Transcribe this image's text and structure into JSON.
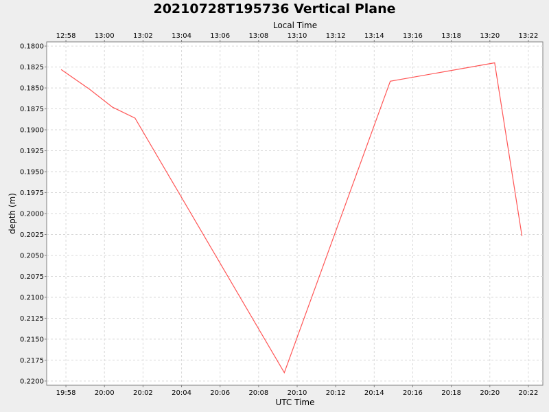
{
  "chart_data": {
    "type": "line",
    "title": "20210728T195736 Vertical Plane",
    "xlabel": "UTC Time",
    "x2label": "Local Time",
    "ylabel": "depth (m)",
    "y_inverted": true,
    "ylim": [
      0.1795,
      0.2205
    ],
    "xlim": [
      "19:57:00",
      "20:22:45"
    ],
    "grid": true,
    "x_ticks": [
      "19:58",
      "20:00",
      "20:02",
      "20:04",
      "20:06",
      "20:08",
      "20:10",
      "20:12",
      "20:14",
      "20:16",
      "20:18",
      "20:20",
      "20:22"
    ],
    "x2_ticks": [
      "12:58",
      "13:00",
      "13:02",
      "13:04",
      "13:06",
      "13:08",
      "13:10",
      "13:12",
      "13:14",
      "13:16",
      "13:18",
      "13:20",
      "13:22"
    ],
    "y_ticks": [
      "0.1800",
      "0.1825",
      "0.1850",
      "0.1875",
      "0.1900",
      "0.1925",
      "0.1950",
      "0.1975",
      "0.2000",
      "0.2025",
      "0.2050",
      "0.2075",
      "0.2100",
      "0.2125",
      "0.2150",
      "0.2175",
      "0.2200"
    ],
    "series": [
      {
        "color": "#ff5555",
        "x": [
          "19:57:45",
          "19:59:15",
          "20:00:25",
          "20:01:35",
          "20:09:20",
          "20:14:50",
          "20:20:15",
          "20:21:40"
        ],
        "y": [
          0.1828,
          0.1852,
          0.1873,
          0.1886,
          0.219,
          0.1842,
          0.182,
          0.2027
        ]
      }
    ]
  }
}
